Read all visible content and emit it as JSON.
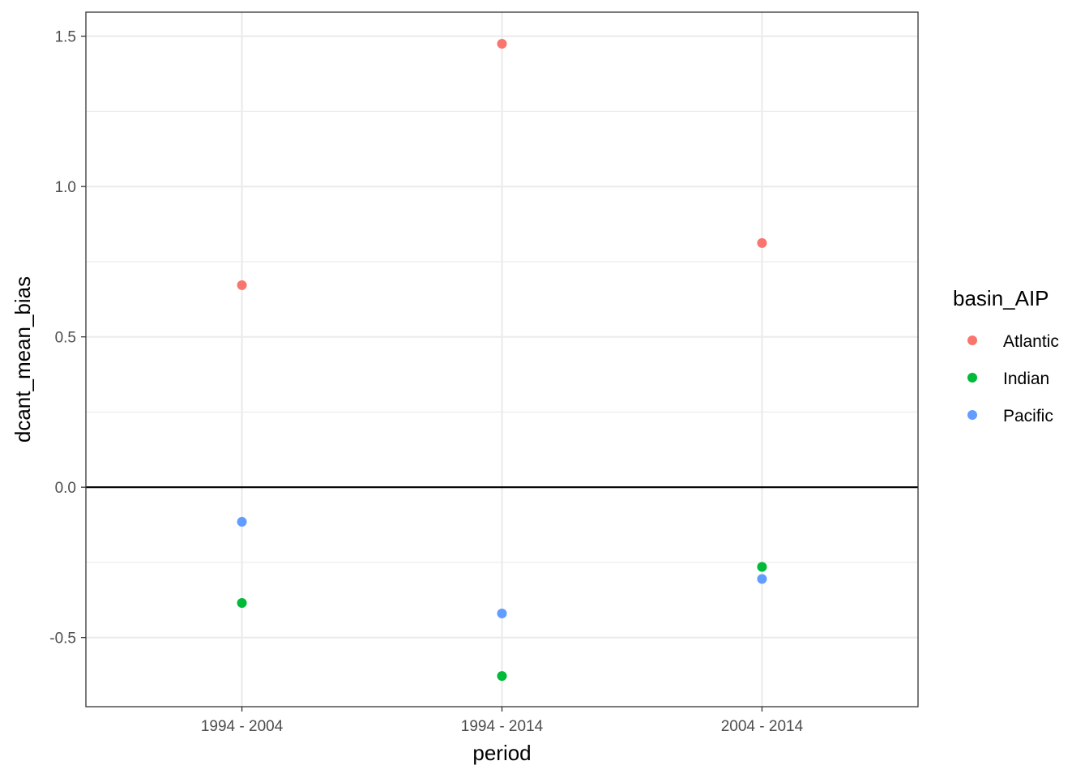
{
  "chart_data": {
    "type": "scatter",
    "categories": [
      "1994 - 2004",
      "1994 - 2014",
      "2004 - 2014"
    ],
    "series": [
      {
        "name": "Atlantic",
        "color": "#F8766D",
        "values": [
          0.672,
          1.475,
          0.812
        ]
      },
      {
        "name": "Indian",
        "color": "#00BA38",
        "values": [
          -0.385,
          -0.628,
          -0.265
        ]
      },
      {
        "name": "Pacific",
        "color": "#619CFF",
        "values": [
          -0.115,
          -0.42,
          -0.305
        ]
      }
    ],
    "title": "",
    "xlabel": "period",
    "ylabel": "dcant_mean_bias",
    "ylim": [
      -0.73,
      1.58
    ],
    "yticks": [
      -0.5,
      0.0,
      0.5,
      1.0,
      1.5
    ],
    "ytick_labels": [
      "-0.5",
      "0.0",
      "0.5",
      "1.0",
      "1.5"
    ],
    "hline": 0,
    "grid": true,
    "legend_title": "basin_AIP",
    "legend_position": "right"
  }
}
